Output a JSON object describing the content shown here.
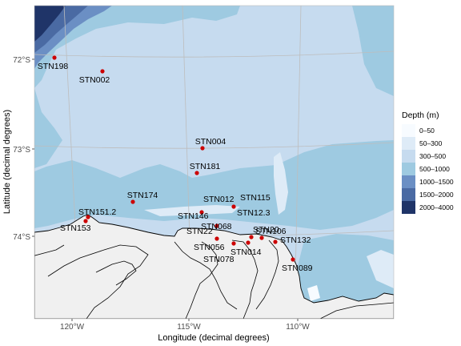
{
  "axes": {
    "xlabel": "Longitude (decimal degrees)",
    "ylabel": "Latitude (decimal degrees)",
    "x_ticks": [
      "120°W",
      "115°W",
      "110°W"
    ],
    "y_ticks": [
      "72°S",
      "73°S",
      "74°S"
    ]
  },
  "legend": {
    "title": "Depth (m)",
    "placement": "right",
    "classes": [
      {
        "label": "0–50",
        "color": "#f7fbff"
      },
      {
        "label": "50–300",
        "color": "#deebf7"
      },
      {
        "label": "300–500",
        "color": "#c6dbef"
      },
      {
        "label": "500–1000",
        "color": "#9ecae1"
      },
      {
        "label": "1000–1500",
        "color": "#6b8fc4"
      },
      {
        "label": "1500–2000",
        "color": "#4a6aa3"
      },
      {
        "label": "2000–4000",
        "color": "#1f3468"
      }
    ]
  },
  "colors": {
    "land": "#f0f0f0",
    "station_marker": "#cc0000",
    "graticule": "#bdbdbd"
  },
  "chart_data": {
    "type": "scatter",
    "stations": [
      {
        "name": "STN198",
        "lon": -120.5,
        "lat": -71.98
      },
      {
        "name": "STN002",
        "lon": -118.7,
        "lat": -72.13
      },
      {
        "name": "STN004",
        "lon": -114.4,
        "lat": -73.0
      },
      {
        "name": "STN181",
        "lon": -114.5,
        "lat": -73.28
      },
      {
        "name": "STN174",
        "lon": -117.1,
        "lat": -73.62
      },
      {
        "name": "STN146",
        "lon": -114.3,
        "lat": -73.73
      },
      {
        "name": "STN012",
        "lon": -113.0,
        "lat": -73.6
      },
      {
        "name": "STN115",
        "lon": -112.8,
        "lat": -73.66
      },
      {
        "name": "STN12.3",
        "lon": -112.8,
        "lat": -73.66
      },
      {
        "name": "STN068",
        "lon": -113.8,
        "lat": -73.85
      },
      {
        "name": "STN151.2",
        "lon": -119.3,
        "lat": -73.78
      },
      {
        "name": "STN153",
        "lon": -119.4,
        "lat": -73.83
      },
      {
        "name": "STN22",
        "lon": -114.0,
        "lat": -74.02
      },
      {
        "name": "STN20",
        "lon": -112.4,
        "lat": -74.01
      },
      {
        "name": "STN056",
        "lon": -113.4,
        "lat": -74.09
      },
      {
        "name": "STN078",
        "lon": -113.4,
        "lat": -74.09
      },
      {
        "name": "STN014",
        "lon": -112.5,
        "lat": -74.08
      },
      {
        "name": "STN106",
        "lon": -111.6,
        "lat": -74.02
      },
      {
        "name": "STN132",
        "lon": -110.9,
        "lat": -74.07
      },
      {
        "name": "STN089",
        "lon": -110.3,
        "lat": -74.3
      }
    ]
  }
}
